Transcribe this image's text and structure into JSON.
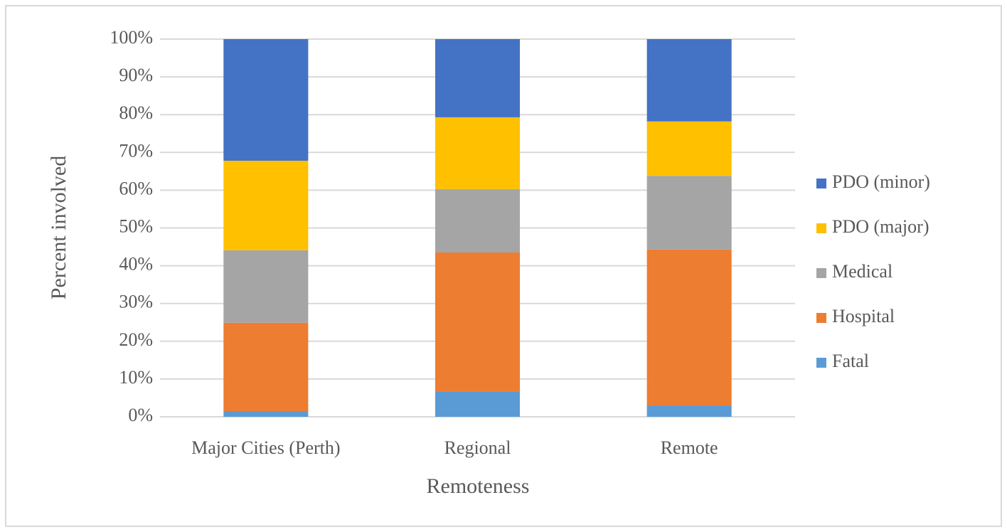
{
  "chart_data": {
    "type": "stacked_bar",
    "categories": [
      "Major Cities (Perth)",
      "Regional",
      "Remote"
    ],
    "x_label": "Remoteness",
    "y_label": "Percent  involved",
    "series": [
      {
        "name": "Fatal",
        "color": "#5b9bd5",
        "values": [
          1.5,
          6.6,
          3.0
        ]
      },
      {
        "name": "Hospital",
        "color": "#ed7d31",
        "values": [
          23.4,
          36.9,
          41.3
        ]
      },
      {
        "name": "Medical",
        "color": "#a5a5a5",
        "values": [
          19.2,
          16.8,
          19.5
        ]
      },
      {
        "name": "PDO (major)",
        "color": "#ffc000",
        "values": [
          23.7,
          19.0,
          14.4
        ]
      },
      {
        "name": "PDO (minor)",
        "color": "#4472c4",
        "values": [
          32.2,
          20.7,
          21.8
        ]
      }
    ],
    "ylim": [
      0,
      100
    ],
    "yticks": [
      {
        "value": 0,
        "label": "0%"
      },
      {
        "value": 10,
        "label": "10%"
      },
      {
        "value": 20,
        "label": "20%"
      },
      {
        "value": 30,
        "label": "30%"
      },
      {
        "value": 40,
        "label": "40%"
      },
      {
        "value": 50,
        "label": "50%"
      },
      {
        "value": 60,
        "label": "60%"
      },
      {
        "value": 70,
        "label": "70%"
      },
      {
        "value": 80,
        "label": "80%"
      },
      {
        "value": 90,
        "label": "90%"
      },
      {
        "value": 100,
        "label": "100%"
      }
    ],
    "grid": true,
    "legend": "right"
  }
}
